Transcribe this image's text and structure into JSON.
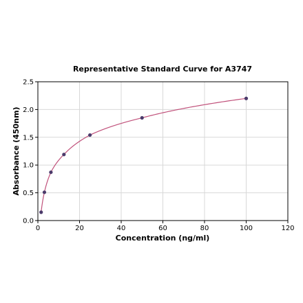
{
  "chart_data": {
    "type": "scatter",
    "title": "Representative Standard Curve for A3747",
    "xlabel": "Concentration (ng/ml)",
    "ylabel": "Absorbance (450nm)",
    "xlim": [
      0,
      120
    ],
    "ylim": [
      0,
      2.5
    ],
    "xticks": [
      0,
      20,
      40,
      60,
      80,
      100,
      120
    ],
    "yticks": [
      0.0,
      0.5,
      1.0,
      1.5,
      2.0,
      2.5
    ],
    "xtick_labels": [
      "0",
      "20",
      "40",
      "60",
      "80",
      "100",
      "120"
    ],
    "ytick_labels": [
      "0.0",
      "0.5",
      "1.0",
      "1.5",
      "2.0",
      "2.5"
    ],
    "grid": true,
    "series": [
      {
        "points": [
          {
            "x": 1.56,
            "y": 0.15
          },
          {
            "x": 3.13,
            "y": 0.51
          },
          {
            "x": 6.25,
            "y": 0.87
          },
          {
            "x": 12.5,
            "y": 1.19
          },
          {
            "x": 25,
            "y": 1.54
          },
          {
            "x": 50,
            "y": 1.85
          },
          {
            "x": 100,
            "y": 2.2
          }
        ],
        "marker_color": "#4b3b6b",
        "curve_color": "#c0507a"
      }
    ]
  }
}
